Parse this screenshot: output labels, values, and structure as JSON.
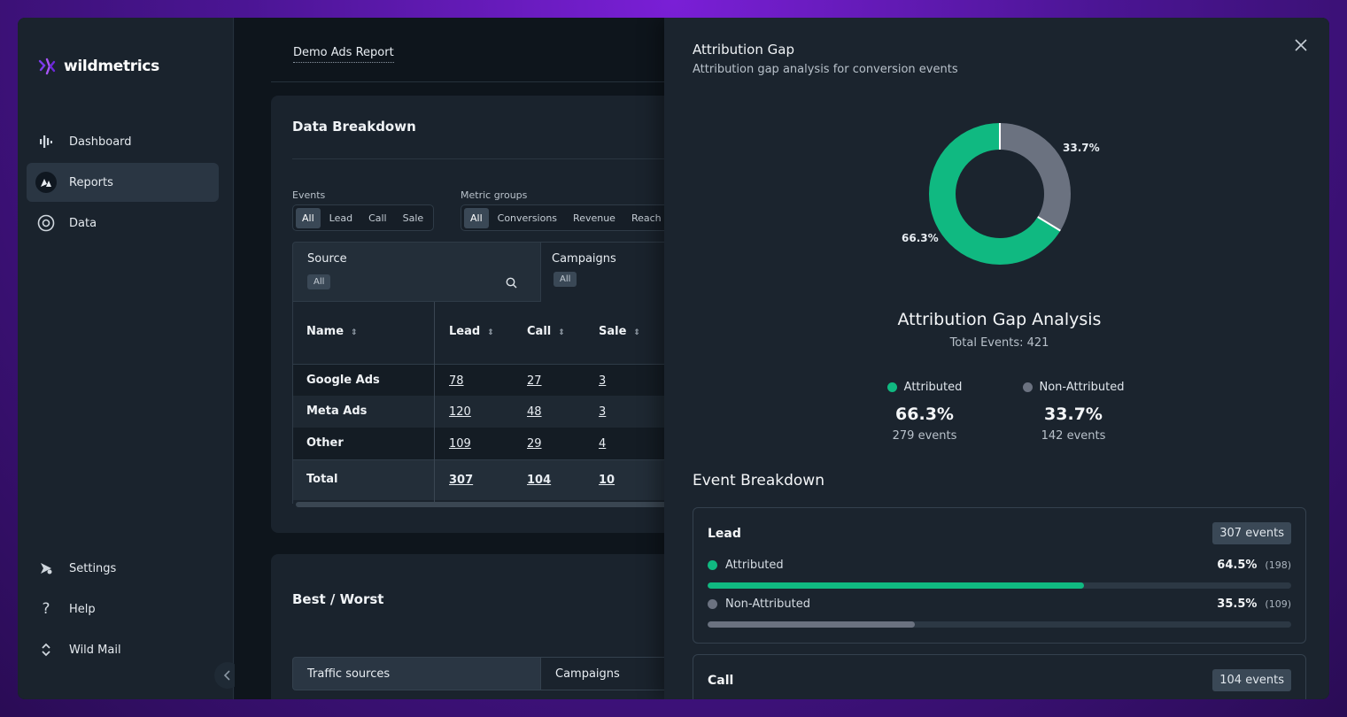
{
  "colors": {
    "attributed": "#10b981",
    "non_attributed": "#6b7280"
  },
  "sidebar": {
    "brand": "wildmetrics",
    "items": [
      {
        "label": "Dashboard",
        "icon": "bar-chart-icon",
        "active": false
      },
      {
        "label": "Reports",
        "icon": "reports-icon",
        "active": true
      },
      {
        "label": "Data",
        "icon": "data-icon",
        "active": false
      }
    ],
    "bottom_items": [
      {
        "label": "Settings",
        "icon": "settings-icon"
      },
      {
        "label": "Help",
        "icon": "help-icon"
      },
      {
        "label": "Wild Mail",
        "icon": "mail-icon"
      }
    ]
  },
  "main": {
    "report_tab": "Demo Ads Report",
    "data_breakdown": {
      "title": "Data Breakdown",
      "events_label": "Events",
      "events_options": [
        "All",
        "Lead",
        "Call",
        "Sale"
      ],
      "metric_groups_label": "Metric groups",
      "metric_groups_options": [
        "All",
        "Conversions",
        "Revenue",
        "Reach"
      ],
      "source_header": "Source",
      "source_filter": "All",
      "campaigns_header": "Campaigns",
      "campaigns_filter": "All",
      "columns": [
        "Name",
        "Lead",
        "Call",
        "Sale"
      ],
      "rows": [
        {
          "name": "Google Ads",
          "lead": "78",
          "call": "27",
          "sale": "3"
        },
        {
          "name": "Meta Ads",
          "lead": "120",
          "call": "48",
          "sale": "3"
        },
        {
          "name": "Other",
          "lead": "109",
          "call": "29",
          "sale": "4"
        }
      ],
      "total": {
        "name": "Total",
        "lead": "307",
        "call": "104",
        "sale": "10"
      }
    },
    "best_worst": {
      "title": "Best / Worst",
      "tabs": [
        "Traffic sources",
        "Campaigns"
      ]
    }
  },
  "panel": {
    "title": "Attribution Gap",
    "subtitle": "Attribution gap analysis for conversion events",
    "chart_data": {
      "type": "pie",
      "categories": [
        "Attributed",
        "Non-Attributed"
      ],
      "values": [
        66.3,
        33.7
      ],
      "labels": [
        "66.3%",
        "33.7%"
      ],
      "title": "Attribution Gap Analysis"
    },
    "analysis_title": "Attribution Gap Analysis",
    "analysis_sub": "Total Events: 421",
    "attributed": {
      "label": "Attributed",
      "pct": "66.3%",
      "events": "279 events"
    },
    "non_attributed": {
      "label": "Non-Attributed",
      "pct": "33.7%",
      "events": "142 events"
    },
    "event_breakdown_title": "Event Breakdown",
    "events": [
      {
        "name": "Lead",
        "badge": "307 events",
        "attributed": {
          "label": "Attributed",
          "pct": "64.5%",
          "count": "(198)",
          "value": 64.5
        },
        "non_attributed": {
          "label": "Non-Attributed",
          "pct": "35.5%",
          "count": "(109)",
          "value": 35.5
        }
      },
      {
        "name": "Call",
        "badge": "104 events"
      }
    ]
  }
}
